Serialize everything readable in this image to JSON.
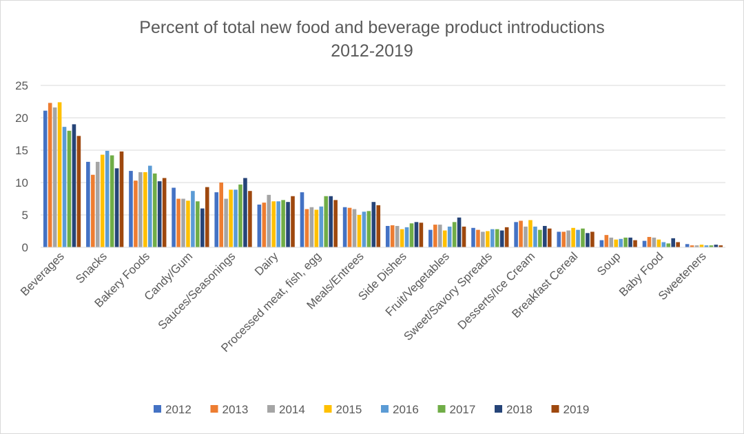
{
  "chart_data": {
    "type": "bar",
    "title_line1": "Percent of total new food and beverage product introductions",
    "title_line2": "2012-2019",
    "xlabel": "",
    "ylabel": "",
    "ylim": [
      0,
      25
    ],
    "yticks": [
      "0",
      "5",
      "10",
      "15",
      "20",
      "25"
    ],
    "grid": true,
    "legend_position": "bottom",
    "categories": [
      "Beverages",
      "Snacks",
      "Bakery Foods",
      "Candy/Gum",
      "Sauces/Seasonings",
      "Dairy",
      "Processed meat, fish, egg",
      "Meals/Entrees",
      "Side Dishes",
      "Fruit/Vegetables",
      "Sweet/Savory Spreads",
      "Desserts/Ice Cream",
      "Breakfast Cereal",
      "Soup",
      "Baby Food",
      "Sweeteners"
    ],
    "series": [
      {
        "name": "2012",
        "color": "#4472C4",
        "values": [
          21.1,
          13.2,
          11.8,
          9.2,
          8.5,
          6.6,
          8.5,
          6.2,
          3.3,
          2.7,
          3.0,
          3.9,
          2.4,
          1.1,
          1.0,
          0.5
        ]
      },
      {
        "name": "2013",
        "color": "#ED7D31",
        "values": [
          22.3,
          11.2,
          10.3,
          7.5,
          10.0,
          6.9,
          5.9,
          6.1,
          3.4,
          3.5,
          2.7,
          4.1,
          2.4,
          1.9,
          1.6,
          0.3
        ]
      },
      {
        "name": "2014",
        "color": "#A5A5A5",
        "values": [
          21.6,
          13.2,
          11.6,
          7.5,
          7.5,
          8.1,
          6.2,
          5.9,
          3.3,
          3.5,
          2.4,
          3.2,
          2.6,
          1.5,
          1.5,
          0.3
        ]
      },
      {
        "name": "2015",
        "color": "#FFC000",
        "values": [
          22.4,
          14.3,
          11.6,
          7.2,
          8.9,
          7.1,
          5.8,
          5.0,
          2.8,
          2.6,
          2.5,
          4.2,
          3.0,
          1.2,
          1.2,
          0.4
        ]
      },
      {
        "name": "2016",
        "color": "#5B9BD5",
        "values": [
          18.6,
          14.9,
          12.6,
          8.7,
          8.9,
          7.1,
          6.3,
          5.5,
          3.1,
          3.2,
          2.8,
          3.2,
          2.7,
          1.3,
          0.8,
          0.3
        ]
      },
      {
        "name": "2017",
        "color": "#70AD47",
        "values": [
          18.0,
          14.2,
          11.4,
          7.1,
          9.7,
          7.3,
          7.9,
          5.6,
          3.7,
          3.9,
          2.8,
          2.7,
          2.9,
          1.5,
          0.6,
          0.3
        ]
      },
      {
        "name": "2018",
        "color": "#264478",
        "values": [
          19.0,
          12.2,
          10.2,
          6.0,
          10.7,
          7.0,
          7.9,
          7.0,
          3.9,
          4.6,
          2.6,
          3.3,
          2.2,
          1.5,
          1.4,
          0.4
        ]
      },
      {
        "name": "2019",
        "color": "#9E480E",
        "values": [
          17.2,
          14.8,
          10.7,
          9.3,
          8.7,
          7.9,
          7.3,
          6.5,
          3.8,
          3.2,
          3.1,
          2.9,
          2.4,
          1.1,
          0.8,
          0.3
        ]
      }
    ]
  }
}
